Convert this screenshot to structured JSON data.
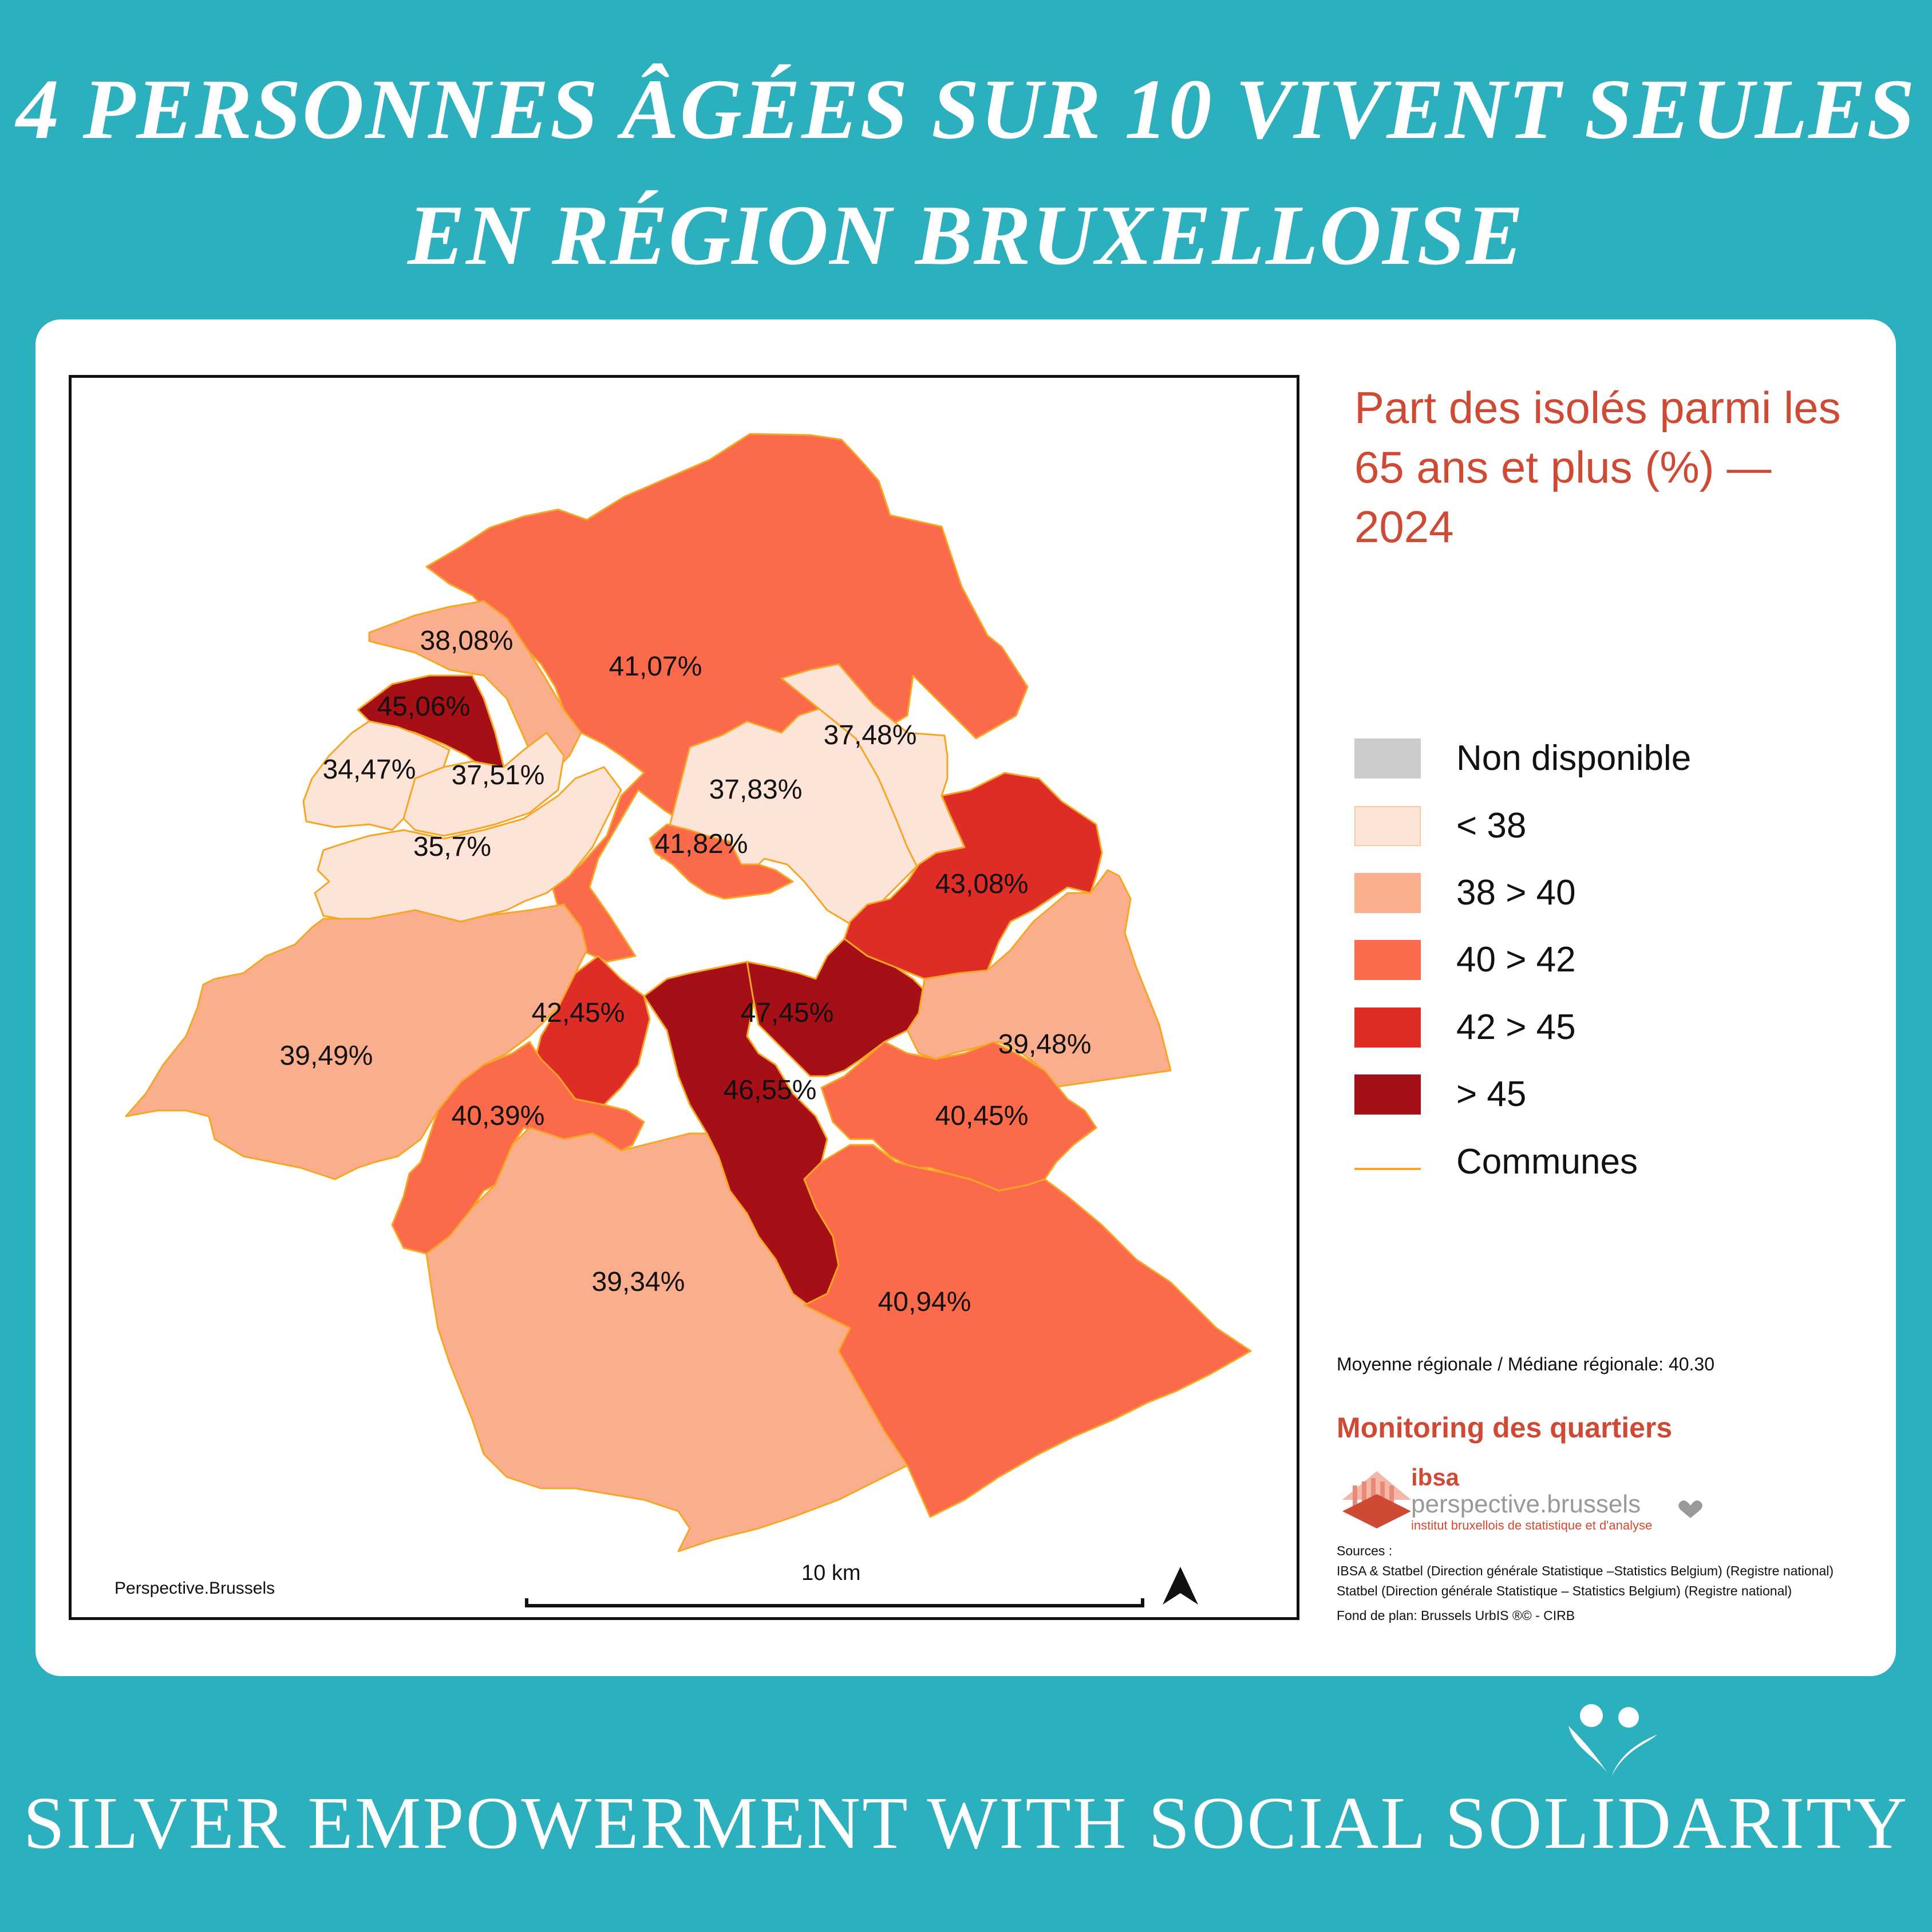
{
  "header": {
    "title_line1": "4 PERSONNES ÂGÉES SUR 10 VIVENT SEULES",
    "title_line2": "EN RÉGION BRUXELLOISE"
  },
  "map": {
    "credit": "Perspective.Brussels",
    "scale_label": "10 km",
    "communes": [
      {
        "id": "evere",
        "label": "37,48%",
        "value": 37.48,
        "fill": "#fde4d8"
      },
      {
        "id": "bruxelles",
        "label": "41,07%",
        "value": 41.07,
        "fill": "#fb6a4a"
      },
      {
        "id": "jette",
        "label": "38,08%",
        "value": 38.08,
        "fill": "#fbae8e"
      },
      {
        "id": "ganshoren",
        "label": "45,06%",
        "value": 45.06,
        "fill": "#a50f15"
      },
      {
        "id": "berchem",
        "label": "34,47%",
        "value": 34.47,
        "fill": "#fde4d8"
      },
      {
        "id": "koekelberg",
        "label": "37,51%",
        "value": 37.51,
        "fill": "#fde4d8"
      },
      {
        "id": "molenbeek",
        "label": "35,7%",
        "value": 35.7,
        "fill": "#fde4d8"
      },
      {
        "id": "schaerbeek",
        "label": "37,83%",
        "value": 37.83,
        "fill": "#fde4d8"
      },
      {
        "id": "stjosse",
        "label": "41,82%",
        "value": 41.82,
        "fill": "#fb6a4a"
      },
      {
        "id": "woluwe-st-lambert",
        "label": "43,08%",
        "value": 43.08,
        "fill": "#de2d26"
      },
      {
        "id": "anderlecht",
        "label": "39,49%",
        "value": 39.49,
        "fill": "#fbae8e"
      },
      {
        "id": "stgilles",
        "label": "42,45%",
        "value": 42.45,
        "fill": "#de2d26"
      },
      {
        "id": "etterbeek",
        "label": "47,45%",
        "value": 47.45,
        "fill": "#a50f15"
      },
      {
        "id": "woluwe-st-pierre",
        "label": "39,48%",
        "value": 39.48,
        "fill": "#fbae8e"
      },
      {
        "id": "ixelles",
        "label": "46,55%",
        "value": 46.55,
        "fill": "#a50f15"
      },
      {
        "id": "forest",
        "label": "40,39%",
        "value": 40.39,
        "fill": "#fb6a4a"
      },
      {
        "id": "auderghem",
        "label": "40,45%",
        "value": 40.45,
        "fill": "#fb6a4a"
      },
      {
        "id": "uccle",
        "label": "39,34%",
        "value": 39.34,
        "fill": "#fbae8e"
      },
      {
        "id": "watermael",
        "label": "40,94%",
        "value": 40.94,
        "fill": "#fb6a4a"
      }
    ]
  },
  "legend": {
    "title": "Part des isolés parmi les 65 ans et plus (%) — 2024",
    "items": [
      {
        "label": "Non  disponible",
        "color": "#cccccc"
      },
      {
        "label": "< 38",
        "color": "#fde4d8"
      },
      {
        "label": "38 > 40",
        "color": "#fbae8e"
      },
      {
        "label": "40 > 42",
        "color": "#fb6a4a"
      },
      {
        "label": "42 > 45",
        "color": "#de2d26"
      },
      {
        "label": "> 45",
        "color": "#a50f15"
      }
    ],
    "communes_label": "Communes",
    "communes_color": "#f5a623"
  },
  "info": {
    "mean": "Moyenne régionale / Médiane régionale: 40.30",
    "monitoring": "Monitoring des quartiers",
    "logo_ibsa": "ibsa",
    "logo_perspective": "perspective.brussels",
    "logo_sub": "institut bruxellois de statistique et d'analyse",
    "sources_title": "Sources :",
    "source1": "IBSA & Statbel (Direction générale Statistique –Statistics Belgium) (Registre national)",
    "source2": "Statbel (Direction générale Statistique – Statistics Belgium) (Registre national)",
    "source3": "Fond de plan: Brussels UrbIS ®© - CIRB"
  },
  "footer": {
    "title": "SILVER EMPOWERMENT WITH SOCIAL SOLIDARITY"
  }
}
